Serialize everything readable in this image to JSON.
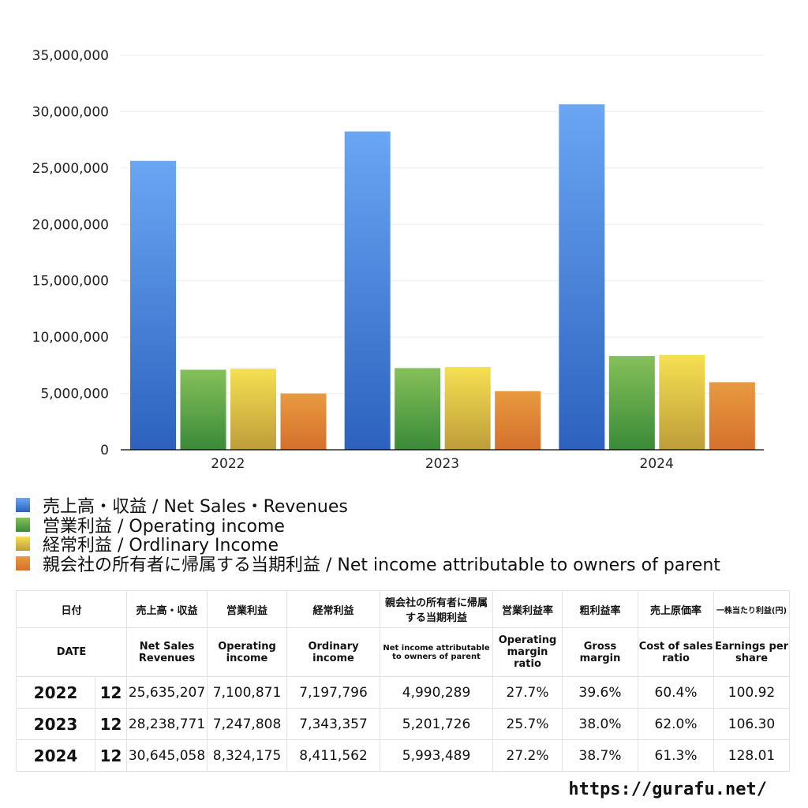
{
  "chart_data": {
    "type": "bar",
    "categories": [
      "2022",
      "2023",
      "2024"
    ],
    "series": [
      {
        "name": "売上高・収益 / Net Sales・Revenues",
        "values": [
          25635207,
          28238771,
          30645058
        ],
        "color_top": "#6aa6f4",
        "color_bottom": "#2c62be"
      },
      {
        "name": "営業利益 / Operating income",
        "values": [
          7100871,
          7247808,
          8324175
        ],
        "color_top": "#86c05a",
        "color_bottom": "#3a8a38"
      },
      {
        "name": "経常利益 / Ordlinary Income",
        "values": [
          7197796,
          7343357,
          8411562
        ],
        "color_top": "#f6e052",
        "color_bottom": "#bd9d3a"
      },
      {
        "name": "親会社の所有者に帰属する当期利益 / Net income attributable to owners of parent",
        "values": [
          4990289,
          5201726,
          5993489
        ],
        "color_top": "#e89a40",
        "color_bottom": "#d4702c"
      }
    ],
    "yticks": [
      "0",
      "5,000,000",
      "10,000,000",
      "15,000,000",
      "20,000,000",
      "25,000,000",
      "30,000,000",
      "35,000,000"
    ],
    "ylim": [
      0,
      35000000
    ],
    "grid": true,
    "legend_position": "bottom-left"
  },
  "table": {
    "header_jp": [
      "日付",
      "売上高・収益",
      "営業利益",
      "経常利益",
      "親会社の所有者に帰属する当期利益",
      "営業利益率",
      "粗利益率",
      "売上原価率",
      "一株当たり利益(円)"
    ],
    "header_en": [
      "DATE",
      "Net Sales Revenues",
      "Operating income",
      "Ordinary income",
      "Net income attributable to owners of parent",
      "Operating margin ratio",
      "Gross margin",
      "Cost of sales ratio",
      "Earnings per share"
    ],
    "rows": [
      [
        "2022",
        "12",
        "25,635,207",
        "7,100,871",
        "7,197,796",
        "4,990,289",
        "27.7%",
        "39.6%",
        "60.4%",
        "100.92"
      ],
      [
        "2023",
        "12",
        "28,238,771",
        "7,247,808",
        "7,343,357",
        "5,201,726",
        "25.7%",
        "38.0%",
        "62.0%",
        "106.30"
      ],
      [
        "2024",
        "12",
        "30,645,058",
        "8,324,175",
        "8,411,562",
        "5,993,489",
        "27.2%",
        "38.7%",
        "61.3%",
        "128.01"
      ]
    ]
  },
  "footer": {
    "url": "https://gurafu.net/"
  }
}
